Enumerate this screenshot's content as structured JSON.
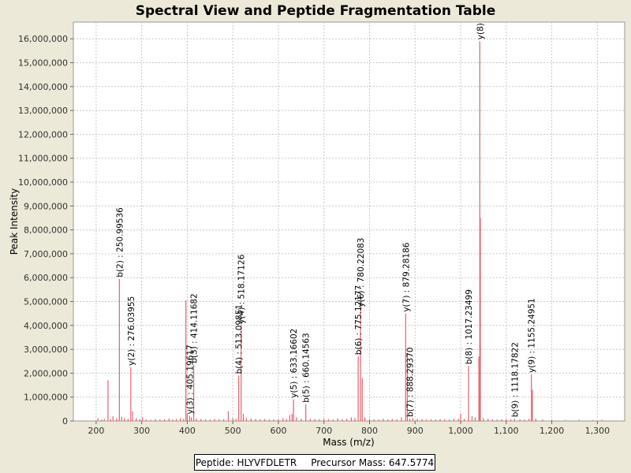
{
  "chart_data": {
    "type": "bar",
    "title": "Spectral View and Peptide Fragmentation Table",
    "xlabel": "Mass (m/z)",
    "ylabel": "Peak Intensity",
    "xlim": [
      150,
      1360
    ],
    "ylim": [
      0,
      16700000
    ],
    "x_ticks": [
      200,
      300,
      400,
      500,
      600,
      700,
      800,
      900,
      1000,
      1100,
      1200,
      1300
    ],
    "x_tick_labels": [
      "200",
      "300",
      "400",
      "500",
      "600",
      "700",
      "800",
      "900",
      "1,000",
      "1,100",
      "1,200",
      "1,300"
    ],
    "y_ticks": [
      0,
      1000000,
      2000000,
      3000000,
      4000000,
      5000000,
      6000000,
      7000000,
      8000000,
      9000000,
      10000000,
      11000000,
      12000000,
      13000000,
      14000000,
      15000000,
      16000000
    ],
    "y_tick_labels": [
      "0",
      "1,000,000",
      "2,000,000",
      "3,000,000",
      "4,000,000",
      "5,000,000",
      "6,000,000",
      "7,000,000",
      "8,000,000",
      "9,000,000",
      "10,000,000",
      "11,000,000",
      "12,000,000",
      "13,000,000",
      "14,000,000",
      "15,000,000",
      "16,000,000"
    ],
    "grid": true,
    "series_color": "#e8606a",
    "peaks": [
      {
        "x": 204,
        "y": 120000
      },
      {
        "x": 212,
        "y": 60000
      },
      {
        "x": 218,
        "y": 90000
      },
      {
        "x": 226,
        "y": 1700000
      },
      {
        "x": 232,
        "y": 80000
      },
      {
        "x": 237,
        "y": 200000
      },
      {
        "x": 245,
        "y": 110000
      },
      {
        "x": 250.99,
        "y": 5950000
      },
      {
        "x": 256,
        "y": 180000
      },
      {
        "x": 262,
        "y": 120000
      },
      {
        "x": 270,
        "y": 90000
      },
      {
        "x": 276.04,
        "y": 2250000
      },
      {
        "x": 280,
        "y": 400000
      },
      {
        "x": 288,
        "y": 110000
      },
      {
        "x": 296,
        "y": 70000
      },
      {
        "x": 302,
        "y": 150000
      },
      {
        "x": 310,
        "y": 60000
      },
      {
        "x": 320,
        "y": 50000
      },
      {
        "x": 330,
        "y": 80000
      },
      {
        "x": 340,
        "y": 60000
      },
      {
        "x": 350,
        "y": 70000
      },
      {
        "x": 360,
        "y": 100000
      },
      {
        "x": 368,
        "y": 60000
      },
      {
        "x": 376,
        "y": 80000
      },
      {
        "x": 385,
        "y": 120000
      },
      {
        "x": 392,
        "y": 90000
      },
      {
        "x": 397,
        "y": 5050000
      },
      {
        "x": 400,
        "y": 300000
      },
      {
        "x": 405.2,
        "y": 220000
      },
      {
        "x": 409,
        "y": 150000
      },
      {
        "x": 414.12,
        "y": 2350000
      },
      {
        "x": 420,
        "y": 100000
      },
      {
        "x": 430,
        "y": 80000
      },
      {
        "x": 440,
        "y": 70000
      },
      {
        "x": 450,
        "y": 60000
      },
      {
        "x": 460,
        "y": 90000
      },
      {
        "x": 470,
        "y": 70000
      },
      {
        "x": 480,
        "y": 80000
      },
      {
        "x": 490,
        "y": 400000
      },
      {
        "x": 500,
        "y": 120000
      },
      {
        "x": 507,
        "y": 90000
      },
      {
        "x": 513,
        "y": 1900000
      },
      {
        "x": 518.17,
        "y": 4000000
      },
      {
        "x": 523,
        "y": 300000
      },
      {
        "x": 530,
        "y": 120000
      },
      {
        "x": 540,
        "y": 100000
      },
      {
        "x": 550,
        "y": 90000
      },
      {
        "x": 560,
        "y": 70000
      },
      {
        "x": 570,
        "y": 80000
      },
      {
        "x": 580,
        "y": 60000
      },
      {
        "x": 590,
        "y": 70000
      },
      {
        "x": 600,
        "y": 90000
      },
      {
        "x": 610,
        "y": 120000
      },
      {
        "x": 618,
        "y": 80000
      },
      {
        "x": 625,
        "y": 250000
      },
      {
        "x": 630,
        "y": 300000
      },
      {
        "x": 633.17,
        "y": 900000
      },
      {
        "x": 640,
        "y": 150000
      },
      {
        "x": 650,
        "y": 100000
      },
      {
        "x": 660.15,
        "y": 700000
      },
      {
        "x": 670,
        "y": 90000
      },
      {
        "x": 680,
        "y": 80000
      },
      {
        "x": 690,
        "y": 70000
      },
      {
        "x": 700,
        "y": 100000
      },
      {
        "x": 710,
        "y": 80000
      },
      {
        "x": 720,
        "y": 60000
      },
      {
        "x": 730,
        "y": 110000
      },
      {
        "x": 740,
        "y": 70000
      },
      {
        "x": 750,
        "y": 90000
      },
      {
        "x": 760,
        "y": 150000
      },
      {
        "x": 768,
        "y": 120000
      },
      {
        "x": 775.12,
        "y": 2700000
      },
      {
        "x": 780.22,
        "y": 4700000
      },
      {
        "x": 784,
        "y": 1800000
      },
      {
        "x": 790,
        "y": 150000
      },
      {
        "x": 800,
        "y": 80000
      },
      {
        "x": 810,
        "y": 70000
      },
      {
        "x": 820,
        "y": 60000
      },
      {
        "x": 830,
        "y": 90000
      },
      {
        "x": 840,
        "y": 60000
      },
      {
        "x": 850,
        "y": 80000
      },
      {
        "x": 860,
        "y": 70000
      },
      {
        "x": 870,
        "y": 150000
      },
      {
        "x": 879.28,
        "y": 4500000
      },
      {
        "x": 883,
        "y": 2850000
      },
      {
        "x": 888.29,
        "y": 100000
      },
      {
        "x": 895,
        "y": 120000
      },
      {
        "x": 905,
        "y": 90000
      },
      {
        "x": 915,
        "y": 80000
      },
      {
        "x": 925,
        "y": 60000
      },
      {
        "x": 935,
        "y": 70000
      },
      {
        "x": 945,
        "y": 60000
      },
      {
        "x": 955,
        "y": 80000
      },
      {
        "x": 965,
        "y": 70000
      },
      {
        "x": 975,
        "y": 60000
      },
      {
        "x": 985,
        "y": 90000
      },
      {
        "x": 995,
        "y": 100000
      },
      {
        "x": 1000,
        "y": 300000
      },
      {
        "x": 1008,
        "y": 90000
      },
      {
        "x": 1017.23,
        "y": 2300000
      },
      {
        "x": 1025,
        "y": 200000
      },
      {
        "x": 1032,
        "y": 150000
      },
      {
        "x": 1040,
        "y": 2700000
      },
      {
        "x": 1042,
        "y": 15900000
      },
      {
        "x": 1043.2,
        "y": 8500000
      },
      {
        "x": 1050,
        "y": 120000
      },
      {
        "x": 1060,
        "y": 90000
      },
      {
        "x": 1070,
        "y": 70000
      },
      {
        "x": 1080,
        "y": 60000
      },
      {
        "x": 1090,
        "y": 70000
      },
      {
        "x": 1100,
        "y": 80000
      },
      {
        "x": 1110,
        "y": 60000
      },
      {
        "x": 1118.18,
        "y": 90000
      },
      {
        "x": 1130,
        "y": 70000
      },
      {
        "x": 1140,
        "y": 60000
      },
      {
        "x": 1150,
        "y": 90000
      },
      {
        "x": 1155.25,
        "y": 1950000
      },
      {
        "x": 1157.5,
        "y": 1300000
      },
      {
        "x": 1165,
        "y": 100000
      },
      {
        "x": 1180,
        "y": 60000
      },
      {
        "x": 1200,
        "y": 50000
      },
      {
        "x": 1230,
        "y": 40000
      },
      {
        "x": 1260,
        "y": 50000
      },
      {
        "x": 1290,
        "y": 40000
      },
      {
        "x": 1310,
        "y": 50000
      }
    ],
    "annotations": [
      {
        "label": "b(2) : 250.99536",
        "x": 250.99,
        "y": 5950000
      },
      {
        "label": "y(2) : 276.03955",
        "x": 276.04,
        "y": 2250000
      },
      {
        "label": "y(3) : 405.19617",
        "x": 405.2,
        "y": 220000
      },
      {
        "label": "b(3) : 414.11682",
        "x": 414.12,
        "y": 2350000
      },
      {
        "label": "b(4) : 513.09851",
        "x": 513,
        "y": 1900000
      },
      {
        "label": "y(4) : 518.17126",
        "x": 518.17,
        "y": 4000000
      },
      {
        "label": "y(5) : 633.16602",
        "x": 633.17,
        "y": 900000
      },
      {
        "label": "b(5) : 660.14563",
        "x": 660.15,
        "y": 700000
      },
      {
        "label": "b(6) : 775.12177",
        "x": 775.12,
        "y": 2700000
      },
      {
        "label": "y(6) : 780.22083",
        "x": 780.22,
        "y": 4700000
      },
      {
        "label": "y(7) : 879.28186",
        "x": 879.28,
        "y": 4500000
      },
      {
        "label": "b(7) : 888.29370",
        "x": 888.29,
        "y": 100000
      },
      {
        "label": "b(8) : 1017.23499",
        "x": 1017.23,
        "y": 2300000
      },
      {
        "label": "y(8)",
        "x": 1042,
        "y": 15900000
      },
      {
        "label": "b(9) : 1118.17822",
        "x": 1118.18,
        "y": 90000
      },
      {
        "label": "y(9) : 1155.24951",
        "x": 1155.25,
        "y": 1950000
      }
    ]
  },
  "info": {
    "peptide": "Peptide: HLYVFDLETR",
    "precursor": "Precursor Mass: 647.5774"
  }
}
